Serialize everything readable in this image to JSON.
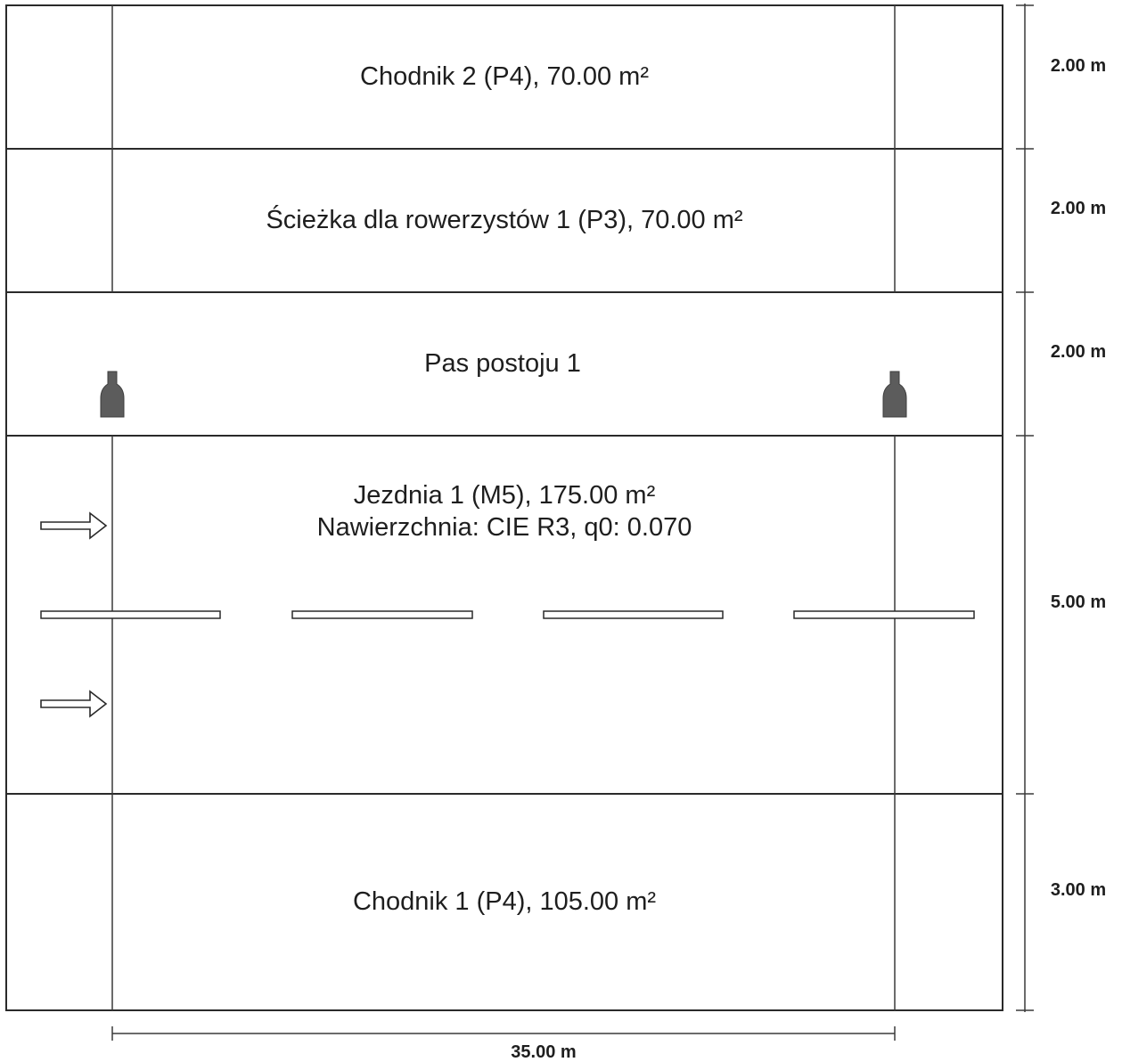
{
  "zones": [
    {
      "id": "chodnik-2",
      "label": "Chodnik 2 (P4), 70.00 m²",
      "width_label": "2.00 m"
    },
    {
      "id": "sciezka-rowerowa-1",
      "label": "Ścieżka dla rowerzystów 1 (P3), 70.00 m²",
      "width_label": "2.00 m"
    },
    {
      "id": "pas-postoju-1",
      "label": "Pas postoju 1",
      "width_label": "2.00 m"
    },
    {
      "id": "jezdnia-1",
      "label": "Jezdnia 1 (M5), 175.00 m²",
      "label_line2": "Nawierzchnia: CIE R3, q0: 0.070",
      "width_label": "5.00 m"
    },
    {
      "id": "chodnik-1",
      "label": "Chodnik 1 (P4), 105.00 m²",
      "width_label": "3.00 m"
    }
  ],
  "length_label": "35.00 m",
  "icons": {
    "luminaire": "luminaire-icon",
    "direction": "traffic-direction-arrow-icon"
  },
  "colors": {
    "line": "#2a2a2a",
    "luminaire": "#5c5c5c"
  }
}
